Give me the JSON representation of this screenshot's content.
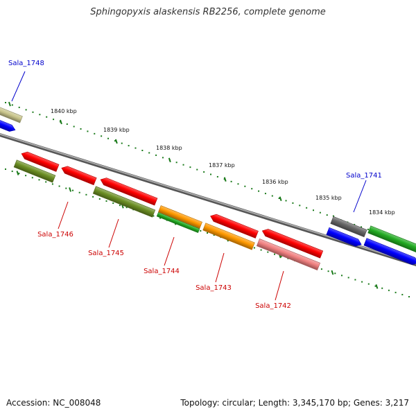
{
  "title": "Sphingopyxis alaskensis RB2256, complete genome",
  "accession": "Accession: NC_008048",
  "summary": "Topology: circular; Length: 3,345,170 bp; Genes: 3,217",
  "colors": {
    "backbone": "#888888",
    "tick": "#1a7a1a",
    "label_upper": "#0000cc",
    "label_lower": "#cc0000",
    "red": "#ff0000",
    "olive": "#6b8e23",
    "khaki": "#c8c48a",
    "blue": "#0000ff",
    "gray": "#666666",
    "green": "#22aa22",
    "orange": "#ff9900",
    "pink": "#f08080"
  },
  "kbp_labels": [
    "1840 kbp",
    "1839 kbp",
    "1838 kbp",
    "1837 kbp",
    "1836 kbp",
    "1835 kbp",
    "1834 kbp"
  ],
  "gene_labels": [
    "Sala_1748",
    "Sala_1746",
    "Sala_1745",
    "Sala_1744",
    "Sala_1743",
    "Sala_1742",
    "Sala_1741"
  ]
}
